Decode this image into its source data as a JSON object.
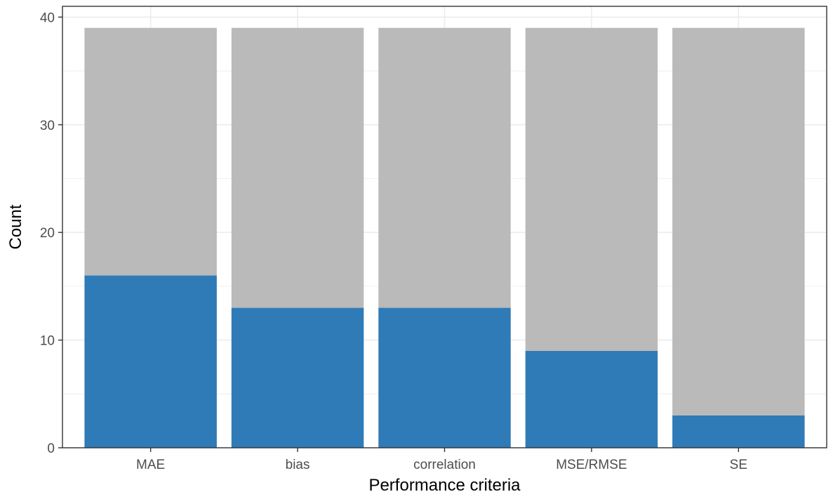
{
  "chart_data": {
    "type": "bar",
    "stacked": true,
    "categories": [
      "MAE",
      "bias",
      "correlation",
      "MSE/RMSE",
      "SE"
    ],
    "series": [
      {
        "values": [
          16,
          13,
          13,
          9,
          3
        ],
        "color": "#2e7bb7"
      },
      {
        "values": [
          23,
          26,
          26,
          30,
          36
        ],
        "color": "#bababa"
      }
    ],
    "totals": [
      39,
      39,
      39,
      39,
      39
    ],
    "title": "",
    "xlabel": "Performance criteria",
    "ylabel": "Count",
    "ylim": [
      0,
      41
    ],
    "yticks": [
      0,
      10,
      20,
      30,
      40
    ],
    "grid": true,
    "legend": "none",
    "panel_border_color": "#333333",
    "grid_color": "#ebebeb"
  }
}
